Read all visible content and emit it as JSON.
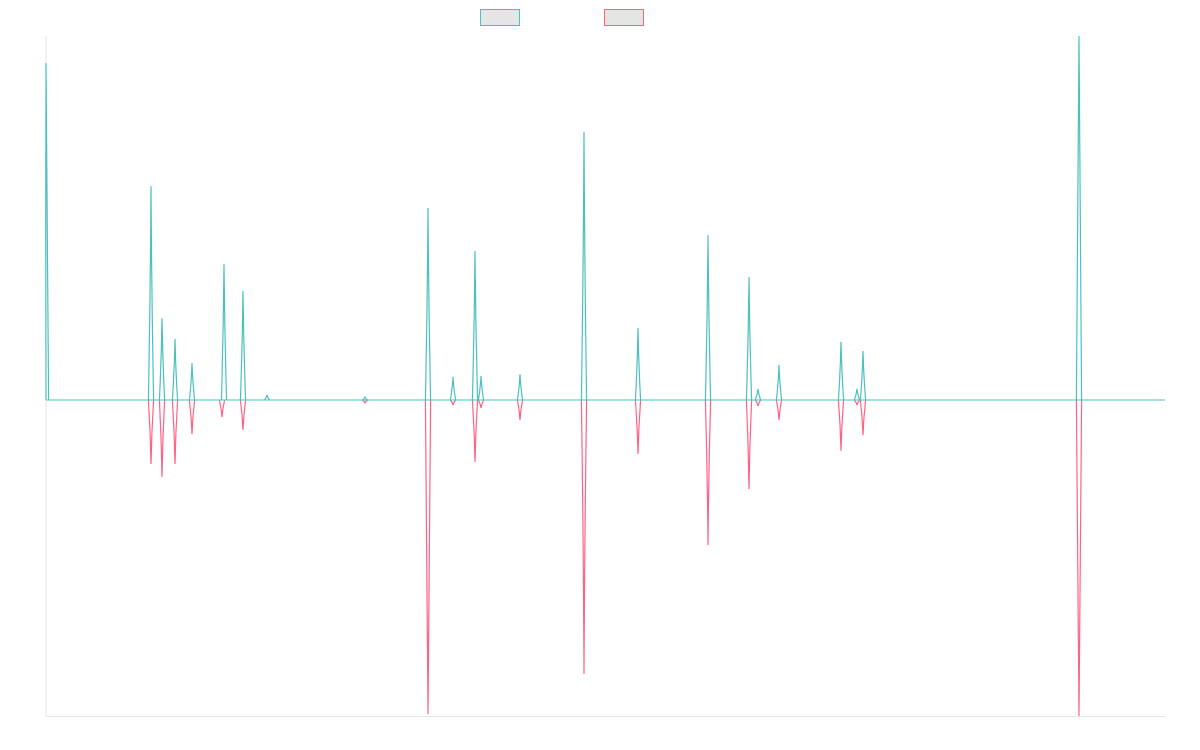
{
  "chart_data": {
    "type": "line",
    "title": "",
    "xlabel": "",
    "ylabel": "",
    "xlim": [
      0,
      1119
    ],
    "ylim": [
      -100,
      115.2
    ],
    "grid": false,
    "legend_placement": "top-center",
    "series": [
      {
        "name": "",
        "color": "#4bc0c0",
        "points": [
          [
            0,
            106.6
          ],
          [
            105,
            67.7
          ],
          [
            116,
            25.9
          ],
          [
            129,
            19.3
          ],
          [
            146,
            11.7
          ],
          [
            178,
            43.0
          ],
          [
            197,
            34.5
          ],
          [
            221,
            1.6
          ],
          [
            319,
            0.9
          ],
          [
            382,
            60.8
          ],
          [
            407,
            7.3
          ],
          [
            429,
            47.2
          ],
          [
            435,
            7.6
          ],
          [
            474,
            8.2
          ],
          [
            538,
            84.8
          ],
          [
            592,
            22.8
          ],
          [
            662,
            52.2
          ],
          [
            703,
            38.9
          ],
          [
            712,
            3.5
          ],
          [
            733,
            11.1
          ],
          [
            795,
            18.4
          ],
          [
            811,
            3.5
          ],
          [
            817,
            15.5
          ],
          [
            1033,
            115.2
          ]
        ]
      },
      {
        "name": "",
        "color": "#ff6384",
        "points": [
          [
            105,
            -20.3
          ],
          [
            116,
            -24.4
          ],
          [
            129,
            -20.3
          ],
          [
            146,
            -10.8
          ],
          [
            176,
            -5.4
          ],
          [
            197,
            -9.5
          ],
          [
            319,
            -0.9
          ],
          [
            382,
            -99.4
          ],
          [
            407,
            -1.6
          ],
          [
            429,
            -19.6
          ],
          [
            435,
            -2.5
          ],
          [
            474,
            -6.3
          ],
          [
            538,
            -86.7
          ],
          [
            592,
            -17.1
          ],
          [
            662,
            -45.9
          ],
          [
            703,
            -28.2
          ],
          [
            712,
            -1.9
          ],
          [
            733,
            -6.3
          ],
          [
            795,
            -16.1
          ],
          [
            811,
            -1.6
          ],
          [
            817,
            -11.1
          ],
          [
            1033,
            -100
          ]
        ]
      }
    ]
  }
}
